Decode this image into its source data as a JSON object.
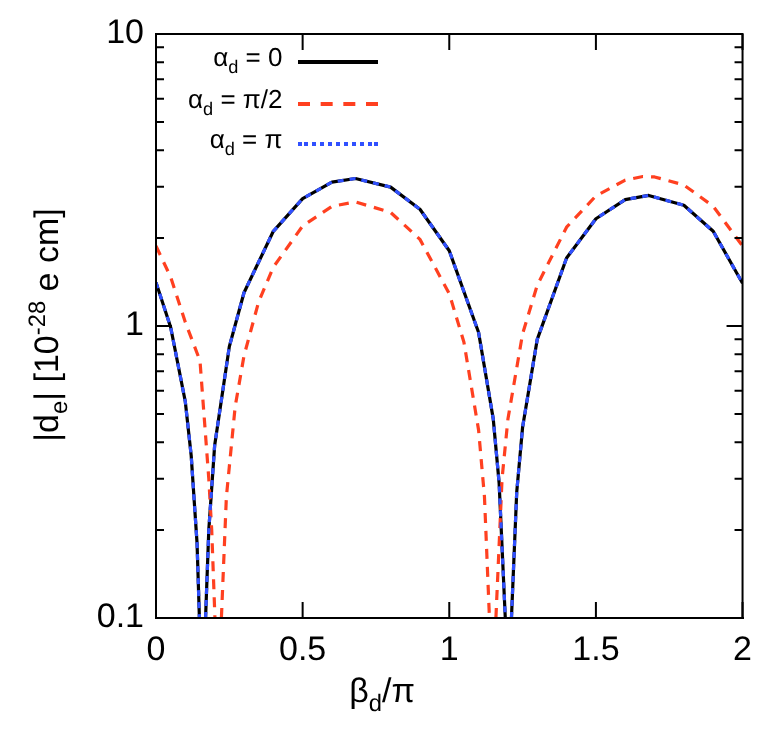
{
  "chart_data": {
    "type": "line",
    "xlabel": "β$_{d}$/π",
    "ylabel": "|d$_{e}$| [10$^{-28}$ e cm]",
    "xlim": [
      0,
      2
    ],
    "xticks": [
      0,
      0.5,
      1,
      1.5,
      2
    ],
    "ylim": [
      0.1,
      10
    ],
    "log": "y",
    "yticks": [
      0.1,
      {
        "value": 0.2,
        "label": null
      },
      {
        "value": 0.3,
        "label": null
      },
      {
        "value": 0.4,
        "label": null
      },
      {
        "value": 0.5,
        "label": null
      },
      {
        "value": 0.6,
        "label": null
      },
      {
        "value": 0.7,
        "label": null
      },
      {
        "value": 0.8,
        "label": null
      },
      {
        "value": 0.9,
        "label": null
      },
      1,
      {
        "value": 2,
        "label": null
      },
      {
        "value": 3,
        "label": null
      },
      {
        "value": 4,
        "label": null
      },
      {
        "value": 5,
        "label": null
      },
      {
        "value": 6,
        "label": null
      },
      {
        "value": 7,
        "label": null
      },
      {
        "value": 8,
        "label": null
      },
      {
        "value": 9,
        "label": null
      },
      10
    ],
    "grid": false,
    "legend": "top left",
    "marker": "none",
    "series": [
      {
        "name": "α$_{d}$ = 0",
        "color": "#000000",
        "line_style": "solid",
        "x": [
          0,
          0.05,
          0.1,
          0.12,
          0.14,
          0.148,
          0.158,
          0.169,
          0.18,
          0.2,
          0.25,
          0.3,
          0.4,
          0.5,
          0.6,
          0.68,
          0.8,
          0.9,
          1.0,
          1.1,
          1.15,
          1.17,
          1.191,
          1.2,
          1.212,
          1.23,
          1.25,
          1.3,
          1.4,
          1.5,
          1.6,
          1.68,
          1.8,
          1.9,
          2.0
        ],
        "values": [
          1.41,
          0.99,
          0.55,
          0.36,
          0.18,
          0.1,
          null,
          0.1,
          0.2,
          0.39,
          0.85,
          1.3,
          2.11,
          2.73,
          3.11,
          3.2,
          2.99,
          2.51,
          1.81,
          0.95,
          0.48,
          0.29,
          0.1,
          null,
          0.1,
          0.27,
          0.45,
          0.9,
          1.71,
          2.33,
          2.71,
          2.8,
          2.59,
          2.11,
          1.4
        ]
      },
      {
        "name": "α$_{d}$ = π/2",
        "color": "#ff4020",
        "line_style": "dashed",
        "x": [
          0,
          0.05,
          0.1,
          0.15,
          0.18,
          0.19,
          0.201,
          0.212,
          0.223,
          0.24,
          0.27,
          0.3,
          0.35,
          0.4,
          0.5,
          0.6,
          0.68,
          0.8,
          0.9,
          1.0,
          1.05,
          1.1,
          1.12,
          1.137,
          1.148,
          1.159,
          1.18,
          1.2,
          1.25,
          1.3,
          1.4,
          1.5,
          1.6,
          1.66,
          1.7,
          1.8,
          1.9,
          2.0
        ],
        "values": [
          1.88,
          1.47,
          1.03,
          0.76,
          0.3,
          0.2,
          0.1,
          null,
          0.1,
          0.26,
          0.53,
          0.79,
          1.21,
          1.59,
          2.2,
          2.57,
          2.66,
          2.45,
          1.98,
          1.29,
          0.88,
          0.44,
          0.26,
          0.1,
          null,
          0.1,
          0.3,
          0.48,
          0.94,
          1.38,
          2.18,
          2.79,
          3.16,
          3.25,
          3.24,
          3.04,
          2.57,
          1.88
        ]
      },
      {
        "name": "α$_{d}$ = π",
        "color": "#3050ff",
        "line_style": "dotted",
        "x": [
          0,
          0.05,
          0.1,
          0.12,
          0.14,
          0.148,
          0.158,
          0.169,
          0.18,
          0.2,
          0.25,
          0.3,
          0.4,
          0.5,
          0.6,
          0.68,
          0.8,
          0.9,
          1.0,
          1.1,
          1.15,
          1.17,
          1.191,
          1.2,
          1.212,
          1.23,
          1.25,
          1.3,
          1.4,
          1.5,
          1.6,
          1.68,
          1.8,
          1.9,
          2.0
        ],
        "values": [
          1.41,
          0.99,
          0.55,
          0.36,
          0.18,
          0.1,
          null,
          0.1,
          0.2,
          0.39,
          0.85,
          1.3,
          2.11,
          2.73,
          3.11,
          3.2,
          2.99,
          2.51,
          1.81,
          0.95,
          0.48,
          0.29,
          0.1,
          null,
          0.1,
          0.27,
          0.45,
          0.9,
          1.71,
          2.33,
          2.71,
          2.8,
          2.59,
          2.11,
          1.4
        ]
      }
    ]
  }
}
